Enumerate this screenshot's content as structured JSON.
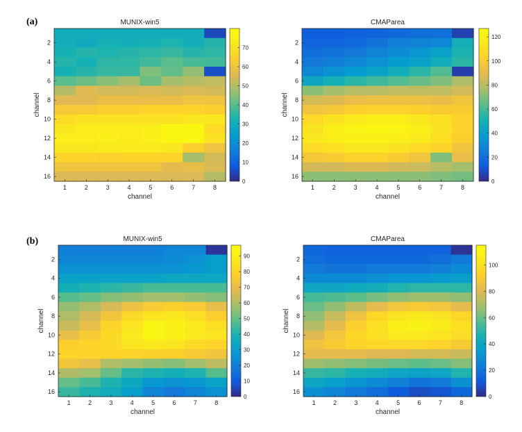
{
  "panel_labels": [
    "(a)",
    "(b)"
  ],
  "chart_data": [
    {
      "type": "heatmap",
      "panel": "(a)",
      "title": "MUNIX-win5",
      "xlabel": "channel",
      "ylabel": "channel",
      "x": [
        1,
        2,
        3,
        4,
        5,
        6,
        7,
        8
      ],
      "y": [
        1,
        2,
        3,
        4,
        5,
        6,
        7,
        8,
        9,
        10,
        11,
        12,
        13,
        14,
        15,
        16
      ],
      "x_ticks": [
        1,
        2,
        3,
        4,
        5,
        6,
        7,
        8
      ],
      "y_ticks": [
        2,
        4,
        6,
        8,
        10,
        12,
        14,
        16
      ],
      "clim": [
        0,
        80
      ],
      "colorbar_ticks": [
        0,
        10,
        20,
        30,
        40,
        50,
        60,
        70
      ],
      "colormap": "parula",
      "values": [
        [
          30,
          30,
          30,
          30,
          30,
          30,
          30,
          5
        ],
        [
          30,
          29,
          32,
          31,
          32,
          33,
          31,
          34
        ],
        [
          32,
          34,
          33,
          34,
          35,
          36,
          34,
          35
        ],
        [
          34,
          32,
          35,
          35,
          37,
          40,
          38,
          37
        ],
        [
          32,
          34,
          36,
          36,
          44,
          41,
          46,
          6
        ],
        [
          40,
          42,
          45,
          48,
          42,
          48,
          50,
          52
        ],
        [
          50,
          56,
          54,
          54,
          55,
          54,
          55,
          54
        ],
        [
          56,
          56,
          58,
          58,
          58,
          58,
          60,
          60
        ],
        [
          62,
          62,
          64,
          64,
          66,
          66,
          66,
          64
        ],
        [
          68,
          70,
          70,
          70,
          70,
          70,
          72,
          72
        ],
        [
          72,
          74,
          74,
          74,
          75,
          78,
          78,
          68
        ],
        [
          74,
          74,
          75,
          74,
          75,
          78,
          78,
          70
        ],
        [
          72,
          72,
          73,
          73,
          73,
          72,
          64,
          60
        ],
        [
          66,
          66,
          65,
          66,
          66,
          66,
          48,
          54
        ],
        [
          60,
          60,
          60,
          60,
          60,
          57,
          58,
          55
        ],
        [
          55,
          55,
          55,
          55,
          55,
          55,
          55,
          50
        ]
      ]
    },
    {
      "type": "heatmap",
      "panel": "(a)",
      "title": "CMAParea",
      "xlabel": "channel",
      "ylabel": "channel",
      "x": [
        1,
        2,
        3,
        4,
        5,
        6,
        7,
        8
      ],
      "y": [
        1,
        2,
        3,
        4,
        5,
        6,
        7,
        8,
        9,
        10,
        11,
        12,
        13,
        14,
        15,
        16
      ],
      "x_ticks": [
        1,
        2,
        3,
        4,
        5,
        6,
        7,
        8
      ],
      "y_ticks": [
        2,
        4,
        6,
        8,
        10,
        12,
        14,
        16
      ],
      "clim": [
        0,
        127
      ],
      "colorbar_ticks": [
        0,
        20,
        40,
        60,
        80,
        100,
        120
      ],
      "colormap": "parula",
      "values": [
        [
          14,
          14,
          15,
          16,
          18,
          20,
          20,
          6
        ],
        [
          16,
          16,
          18,
          22,
          26,
          28,
          30,
          50
        ],
        [
          20,
          22,
          24,
          28,
          32,
          36,
          42,
          52
        ],
        [
          24,
          26,
          30,
          34,
          38,
          42,
          48,
          55
        ],
        [
          30,
          34,
          38,
          42,
          48,
          55,
          62,
          5
        ],
        [
          44,
          50,
          55,
          58,
          62,
          66,
          70,
          78
        ],
        [
          72,
          76,
          80,
          80,
          82,
          82,
          82,
          86
        ],
        [
          86,
          88,
          92,
          94,
          94,
          94,
          92,
          96
        ],
        [
          96,
          98,
          102,
          104,
          104,
          102,
          100,
          100
        ],
        [
          108,
          112,
          116,
          118,
          118,
          114,
          110,
          104
        ],
        [
          112,
          118,
          122,
          124,
          122,
          118,
          112,
          104
        ],
        [
          114,
          118,
          120,
          120,
          118,
          116,
          110,
          102
        ],
        [
          108,
          110,
          114,
          114,
          112,
          108,
          104,
          96
        ],
        [
          98,
          100,
          104,
          104,
          100,
          96,
          70,
          92
        ],
        [
          86,
          86,
          88,
          88,
          86,
          84,
          80,
          76
        ],
        [
          72,
          72,
          72,
          72,
          72,
          72,
          70,
          68
        ]
      ]
    },
    {
      "type": "heatmap",
      "panel": "(b)",
      "title": "MUNIX-win5",
      "xlabel": "channel",
      "ylabel": "channel",
      "x": [
        1,
        2,
        3,
        4,
        5,
        6,
        7,
        8
      ],
      "y": [
        1,
        2,
        3,
        4,
        5,
        6,
        7,
        8,
        9,
        10,
        11,
        12,
        13,
        14,
        15,
        16
      ],
      "x_ticks": [
        1,
        2,
        3,
        4,
        5,
        6,
        7,
        8
      ],
      "y_ticks": [
        2,
        4,
        6,
        8,
        10,
        12,
        14,
        16
      ],
      "clim": [
        0,
        97
      ],
      "colorbar_ticks": [
        0,
        10,
        20,
        30,
        40,
        50,
        60,
        70,
        80,
        90
      ],
      "colormap": "parula",
      "values": [
        [
          20,
          20,
          20,
          20,
          20,
          22,
          22,
          2
        ],
        [
          22,
          22,
          22,
          22,
          22,
          24,
          26,
          30
        ],
        [
          26,
          26,
          26,
          26,
          26,
          26,
          28,
          30
        ],
        [
          32,
          32,
          32,
          32,
          32,
          34,
          34,
          34
        ],
        [
          38,
          40,
          42,
          44,
          46,
          46,
          46,
          46
        ],
        [
          48,
          50,
          54,
          56,
          58,
          58,
          56,
          54
        ],
        [
          56,
          60,
          66,
          72,
          76,
          78,
          76,
          70
        ],
        [
          60,
          66,
          74,
          82,
          86,
          88,
          84,
          78
        ],
        [
          64,
          70,
          80,
          86,
          94,
          92,
          88,
          84
        ],
        [
          70,
          76,
          82,
          88,
          94,
          92,
          88,
          86
        ],
        [
          78,
          80,
          82,
          86,
          88,
          86,
          82,
          80
        ],
        [
          80,
          80,
          80,
          80,
          78,
          78,
          76,
          74
        ],
        [
          74,
          70,
          60,
          58,
          56,
          54,
          58,
          62
        ],
        [
          60,
          58,
          50,
          42,
          40,
          38,
          40,
          48
        ],
        [
          50,
          46,
          40,
          34,
          28,
          26,
          28,
          32
        ],
        [
          44,
          40,
          36,
          30,
          22,
          18,
          22,
          26
        ]
      ]
    },
    {
      "type": "heatmap",
      "panel": "(b)",
      "title": "CMAParea",
      "xlabel": "channel",
      "ylabel": "channel",
      "x": [
        1,
        2,
        3,
        4,
        5,
        6,
        7,
        8
      ],
      "y": [
        1,
        2,
        3,
        4,
        5,
        6,
        7,
        8,
        9,
        10,
        11,
        12,
        13,
        14,
        15,
        16
      ],
      "x_ticks": [
        1,
        2,
        3,
        4,
        5,
        6,
        7,
        8
      ],
      "y_ticks": [
        2,
        4,
        6,
        8,
        10,
        12,
        14,
        16
      ],
      "clim": [
        0,
        115
      ],
      "colorbar_ticks": [
        0,
        20,
        40,
        60,
        80,
        100
      ],
      "colormap": "parula",
      "values": [
        [
          16,
          14,
          14,
          14,
          14,
          14,
          14,
          2
        ],
        [
          18,
          16,
          16,
          16,
          16,
          16,
          18,
          22
        ],
        [
          22,
          20,
          20,
          22,
          22,
          22,
          24,
          28
        ],
        [
          28,
          28,
          28,
          30,
          32,
          32,
          34,
          36
        ],
        [
          40,
          40,
          42,
          44,
          48,
          50,
          50,
          50
        ],
        [
          54,
          56,
          58,
          62,
          66,
          68,
          68,
          66
        ],
        [
          60,
          66,
          74,
          82,
          88,
          90,
          88,
          82
        ],
        [
          66,
          76,
          86,
          96,
          102,
          104,
          102,
          96
        ],
        [
          72,
          82,
          92,
          100,
          108,
          110,
          106,
          100
        ],
        [
          80,
          88,
          96,
          100,
          104,
          104,
          102,
          98
        ],
        [
          86,
          90,
          94,
          96,
          96,
          96,
          94,
          90
        ],
        [
          82,
          82,
          82,
          80,
          80,
          78,
          78,
          76
        ],
        [
          68,
          66,
          64,
          62,
          60,
          58,
          60,
          64
        ],
        [
          52,
          50,
          46,
          44,
          40,
          38,
          40,
          48
        ],
        [
          40,
          36,
          32,
          28,
          24,
          20,
          22,
          30
        ],
        [
          30,
          26,
          22,
          18,
          12,
          8,
          10,
          16
        ]
      ]
    }
  ]
}
